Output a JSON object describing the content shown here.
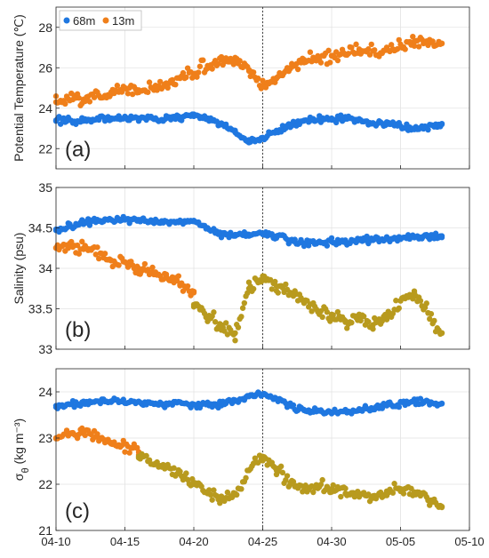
{
  "chart_data": {
    "type": "scatter",
    "x_ticks": [
      "04-10",
      "04-15",
      "04-20",
      "04-25",
      "04-30",
      "05-05",
      "05-10"
    ],
    "xlim": [
      "04-10",
      "05-10"
    ],
    "event_line_date": "04-25",
    "legend": {
      "placement": "top-left",
      "entries": [
        {
          "name": "68m",
          "color": "#1f77e0"
        },
        {
          "name": "13m",
          "color": "#ef7f1a"
        }
      ]
    },
    "grid": true,
    "panels": [
      {
        "label": "(a)",
        "ylabel": "Potential Temperature (℃)",
        "ylabel_parts": [
          {
            "t": "Potential Temperature (℃)",
            "sub": false
          }
        ],
        "ylim": [
          21,
          29
        ],
        "yticks": [
          "22",
          "24",
          "26",
          "28"
        ],
        "series": [
          {
            "name": "68m",
            "color": "#1f77e0",
            "x": [
              "04-10",
              "04-12",
              "04-14",
              "04-16",
              "04-18",
              "04-20",
              "04-21",
              "04-22",
              "04-23",
              "04-24",
              "04-25",
              "04-26",
              "04-27",
              "04-28",
              "04-30",
              "05-02",
              "05-04",
              "05-06",
              "05-08"
            ],
            "values": [
              23.4,
              23.4,
              23.5,
              23.5,
              23.5,
              23.6,
              23.5,
              23.2,
              22.8,
              22.3,
              22.5,
              22.9,
              23.2,
              23.4,
              23.5,
              23.4,
              23.2,
              23.0,
              23.2
            ]
          },
          {
            "name": "13m",
            "color": "#ef7f1a",
            "x": [
              "04-10",
              "04-12",
              "04-14",
              "04-16",
              "04-18",
              "04-20",
              "04-21",
              "04-22",
              "04-23",
              "04-24",
              "04-25",
              "04-26",
              "04-27",
              "04-28",
              "04-30",
              "05-02",
              "05-04",
              "05-06",
              "05-08"
            ],
            "values": [
              24.3,
              24.4,
              24.7,
              24.9,
              25.2,
              25.7,
              26.1,
              26.4,
              26.5,
              25.9,
              25.1,
              25.5,
              26.0,
              26.4,
              26.6,
              26.8,
              26.9,
              27.3,
              27.2
            ]
          }
        ]
      },
      {
        "label": "(b)",
        "ylabel": "Salinity (psu)",
        "ylabel_parts": [
          {
            "t": "Salinity (psu)",
            "sub": false
          }
        ],
        "ylim": [
          33,
          35
        ],
        "yticks": [
          "33",
          "33.5",
          "34",
          "34.5",
          "35"
        ],
        "series": [
          {
            "name": "68m",
            "color": "#1f77e0",
            "x": [
              "04-10",
              "04-12",
              "04-14",
              "04-16",
              "04-18",
              "04-20",
              "04-21",
              "04-22",
              "04-23",
              "04-24",
              "04-25",
              "04-26",
              "04-27",
              "04-28",
              "04-30",
              "05-02",
              "05-04",
              "05-06",
              "05-08"
            ],
            "values": [
              34.47,
              34.56,
              34.6,
              34.6,
              34.58,
              34.58,
              34.5,
              34.42,
              34.4,
              34.42,
              34.42,
              34.4,
              34.35,
              34.3,
              34.33,
              34.35,
              34.36,
              34.38,
              34.4
            ]
          },
          {
            "name": "13m",
            "color": "#ef7f1a",
            "x": [
              "04-10",
              "04-12",
              "04-14",
              "04-16",
              "04-17",
              "04-18",
              "04-19",
              "04-20"
            ],
            "values": [
              34.25,
              34.25,
              34.1,
              34.0,
              33.95,
              33.9,
              33.8,
              33.7
            ]
          },
          {
            "name": "13m",
            "color": "#b89a1e",
            "x": [
              "04-20",
              "04-21",
              "04-22",
              "04-23",
              "04-24",
              "04-25",
              "04-26",
              "04-27",
              "04-28",
              "04-30",
              "05-01",
              "05-02",
              "05-03",
              "05-04",
              "05-05",
              "05-06",
              "05-07",
              "05-08"
            ],
            "values": [
              33.55,
              33.4,
              33.3,
              33.2,
              33.75,
              33.88,
              33.78,
              33.7,
              33.6,
              33.4,
              33.35,
              33.4,
              33.3,
              33.4,
              33.6,
              33.7,
              33.45,
              33.2
            ]
          }
        ]
      },
      {
        "label": "(c)",
        "ylabel": "σθ (kg m⁻³)",
        "ylabel_parts": [
          {
            "t": "σ",
            "sub": false
          },
          {
            "t": "θ",
            "sub": true
          },
          {
            "t": " (kg m⁻³)",
            "sub": false
          }
        ],
        "ylim": [
          21,
          24.5
        ],
        "yticks": [
          "21",
          "22",
          "23",
          "24"
        ],
        "series": [
          {
            "name": "68m",
            "color": "#1f77e0",
            "x": [
              "04-10",
              "04-12",
              "04-14",
              "04-16",
              "04-18",
              "04-20",
              "04-21",
              "04-22",
              "04-23",
              "04-24",
              "04-25",
              "04-26",
              "04-27",
              "04-28",
              "04-30",
              "05-02",
              "05-04",
              "05-06",
              "05-08"
            ],
            "values": [
              23.7,
              23.75,
              23.8,
              23.78,
              23.75,
              23.73,
              23.73,
              23.72,
              23.8,
              23.9,
              23.95,
              23.85,
              23.7,
              23.6,
              23.55,
              23.6,
              23.7,
              23.8,
              23.75
            ]
          },
          {
            "name": "13m",
            "color": "#ef7f1a",
            "x": [
              "04-10",
              "04-12",
              "04-14",
              "04-16"
            ],
            "values": [
              23.0,
              23.1,
              22.9,
              22.7
            ]
          },
          {
            "name": "13m",
            "color": "#b89a1e",
            "x": [
              "04-16",
              "04-18",
              "04-20",
              "04-21",
              "04-22",
              "04-23",
              "04-24",
              "04-25",
              "04-26",
              "04-27",
              "04-28",
              "04-30",
              "05-01",
              "05-02",
              "05-03",
              "05-04",
              "05-05",
              "05-06",
              "05-07",
              "05-08"
            ],
            "values": [
              22.6,
              22.4,
              22.0,
              21.8,
              21.7,
              21.8,
              22.3,
              22.6,
              22.3,
              22.0,
              21.95,
              21.9,
              21.8,
              21.75,
              21.7,
              21.85,
              21.9,
              21.8,
              21.65,
              21.5
            ]
          }
        ]
      }
    ]
  }
}
